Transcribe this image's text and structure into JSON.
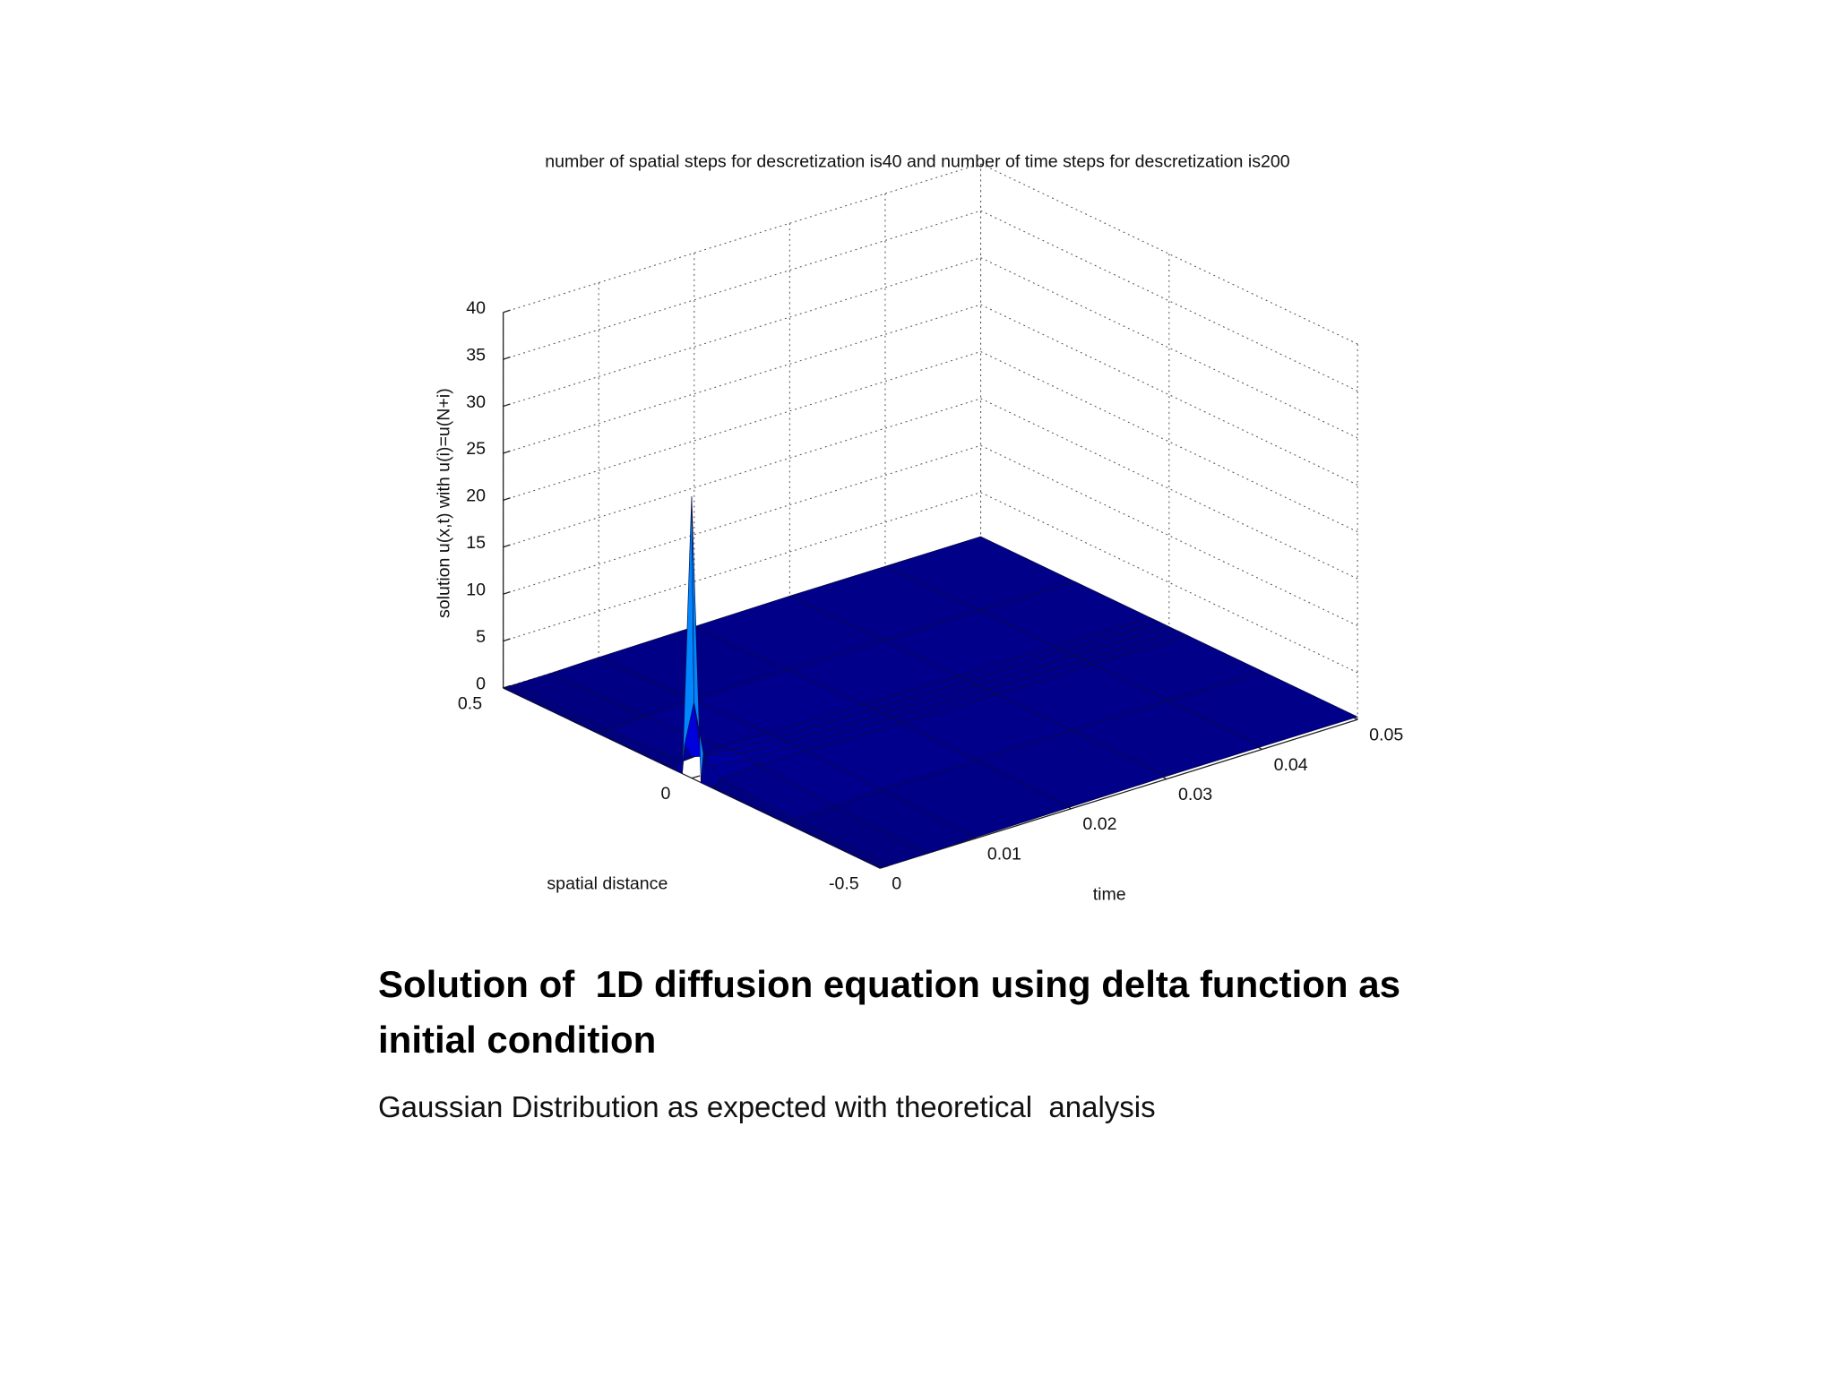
{
  "chart_data": {
    "type": "surface3d",
    "title": "number of spatial steps for descretization is40  and number of time steps for descretization is200",
    "xlabel": "spatial distance",
    "ylabel": "time",
    "zlabel": "solution u(x,t) with u(i)=u(N+i)",
    "x": [
      -0.5,
      -0.25,
      -0.05,
      -0.025,
      0,
      0.025,
      0.05,
      0.25,
      0.5
    ],
    "y": [
      0,
      0.00025,
      0.001,
      0.005,
      0.01,
      0.02,
      0.03,
      0.04,
      0.05
    ],
    "z": [
      [
        0,
        0,
        0,
        0,
        30,
        0,
        0,
        0,
        0
      ],
      [
        0,
        0,
        0,
        3,
        8,
        3,
        0,
        0,
        0
      ],
      [
        0,
        0,
        0.5,
        1.5,
        2,
        1.5,
        0.5,
        0,
        0
      ],
      [
        0,
        0.2,
        0.8,
        0.9,
        1,
        0.9,
        0.8,
        0.2,
        0
      ],
      [
        0.1,
        0.4,
        0.7,
        0.7,
        0.7,
        0.7,
        0.7,
        0.4,
        0.1
      ],
      [
        0.2,
        0.4,
        0.5,
        0.5,
        0.5,
        0.5,
        0.5,
        0.4,
        0.2
      ],
      [
        0.3,
        0.4,
        0.4,
        0.4,
        0.4,
        0.4,
        0.4,
        0.4,
        0.3
      ],
      [
        0.3,
        0.4,
        0.4,
        0.4,
        0.4,
        0.4,
        0.4,
        0.4,
        0.3
      ],
      [
        0.3,
        0.3,
        0.3,
        0.3,
        0.3,
        0.3,
        0.3,
        0.3,
        0.3
      ]
    ],
    "xlim": [
      -0.5,
      0.5
    ],
    "xticks": [
      -0.5,
      0,
      0.5
    ],
    "ylim": [
      0,
      0.05
    ],
    "yticks": [
      0,
      0.01,
      0.02,
      0.03,
      0.04,
      0.05
    ],
    "zlim": [
      0,
      40
    ],
    "zticks": [
      0,
      5,
      10,
      15,
      20,
      25,
      30,
      35,
      40
    ],
    "grid": true,
    "colormap": "jet"
  },
  "slide": {
    "title": "Solution of  1D diffusion equation using delta function as initial condition",
    "subtitle": "Gaussian Distribution as expected with theoretical  analysis"
  }
}
